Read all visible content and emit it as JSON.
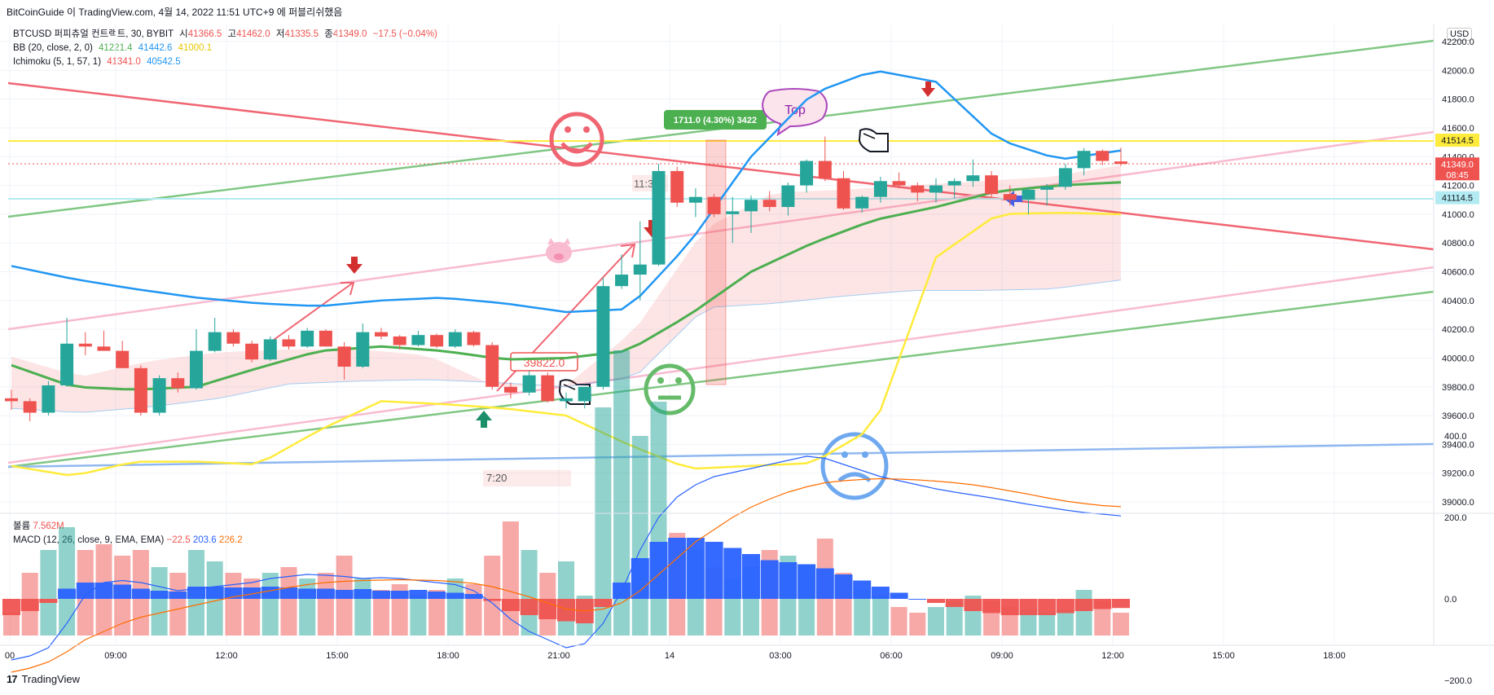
{
  "header": {
    "caption": "BitCoinGuide 이 TradingView.com, 4월 14, 2022 11:51 UTC+9 에 퍼블리쉬했음"
  },
  "legend": {
    "symbol": "BTCUSD 퍼피츄얼 컨트랙트, 30, BYBIT",
    "open_label": "시",
    "open": "41366.5",
    "high_label": "고",
    "high": "41462.0",
    "low_label": "저",
    "low": "41335.5",
    "close_label": "종",
    "close": "41349.0",
    "change": "−17.5 (−0.04%)",
    "bb_label": "BB (20, close, 2, 0)",
    "bb_basis": "41221.4",
    "bb_upper": "41442.6",
    "bb_lower": "41000.1",
    "ichi_label": "Ichimoku (5, 1, 57, 1)",
    "ichi_a": "41341.0",
    "ichi_b": "40542.5",
    "vol_label": "볼륨",
    "vol_value": "7.562M",
    "macd_label": "MACD (12, 26, close, 9, EMA, EMA)",
    "macd_hist": "−22.5",
    "macd_line": "203.6",
    "macd_signal": "226.2"
  },
  "currency": "USD",
  "brand": "TradingView",
  "colors": {
    "up": "#26a69a",
    "down": "#ef5350",
    "bb_basis": "#4caf50",
    "bb_upper": "#2196f3",
    "bb_lower": "#ffeb3b",
    "ichi_a": "#ef5350",
    "ichi_b": "#2196f3"
  },
  "chart_data": {
    "type": "candlestick",
    "price_axis": {
      "ticks": [
        "42200.0",
        "42000.0",
        "41800.0",
        "41600.0",
        "41400.0",
        "41200.0",
        "41000.0",
        "40800.0",
        "40600.0",
        "40400.0",
        "40200.0",
        "40000.0",
        "39800.0",
        "39600.0",
        "39400.0",
        "39200.0",
        "39000.0"
      ],
      "min": 38950,
      "max": 42270
    },
    "time_axis": {
      "ticks": [
        "00",
        "09:00",
        "12:00",
        "15:00",
        "18:00",
        "21:00",
        "14",
        "03:00",
        "06:00",
        "09:00",
        "12:00",
        "15:00",
        "18:00"
      ]
    },
    "price_labels": [
      {
        "text": "41514.5",
        "value": 41514.5,
        "bg": "#ffeb3b",
        "fg": "#131722"
      },
      {
        "text": "41349.0",
        "value": 41349.0,
        "bg": "#ef5350",
        "fg": "#ffffff",
        "sub": "08:45"
      },
      {
        "text": "41114.5",
        "value": 41114.5,
        "bg": "#b2ebf2",
        "fg": "#131722"
      }
    ],
    "candles": [
      {
        "o": 39720,
        "h": 39780,
        "l": 39640,
        "c": 39700
      },
      {
        "o": 39700,
        "h": 39720,
        "l": 39560,
        "c": 39620
      },
      {
        "o": 39620,
        "h": 39840,
        "l": 39600,
        "c": 39810
      },
      {
        "o": 39810,
        "h": 40280,
        "l": 39800,
        "c": 40100
      },
      {
        "o": 40100,
        "h": 40180,
        "l": 40020,
        "c": 40080
      },
      {
        "o": 40080,
        "h": 40190,
        "l": 40050,
        "c": 40050
      },
      {
        "o": 40050,
        "h": 40120,
        "l": 39930,
        "c": 39930
      },
      {
        "o": 39930,
        "h": 39950,
        "l": 39600,
        "c": 39620
      },
      {
        "o": 39620,
        "h": 39880,
        "l": 39600,
        "c": 39860
      },
      {
        "o": 39860,
        "h": 39900,
        "l": 39760,
        "c": 39790
      },
      {
        "o": 39790,
        "h": 40200,
        "l": 39780,
        "c": 40050
      },
      {
        "o": 40050,
        "h": 40280,
        "l": 40040,
        "c": 40180
      },
      {
        "o": 40180,
        "h": 40200,
        "l": 40080,
        "c": 40100
      },
      {
        "o": 40100,
        "h": 40120,
        "l": 39970,
        "c": 39990
      },
      {
        "o": 39990,
        "h": 40150,
        "l": 39980,
        "c": 40130
      },
      {
        "o": 40130,
        "h": 40160,
        "l": 40060,
        "c": 40080
      },
      {
        "o": 40080,
        "h": 40210,
        "l": 40070,
        "c": 40190
      },
      {
        "o": 40190,
        "h": 40200,
        "l": 40080,
        "c": 40080
      },
      {
        "o": 40080,
        "h": 40110,
        "l": 39850,
        "c": 39940
      },
      {
        "o": 39940,
        "h": 40240,
        "l": 39930,
        "c": 40180
      },
      {
        "o": 40180,
        "h": 40210,
        "l": 40130,
        "c": 40150
      },
      {
        "o": 40150,
        "h": 40160,
        "l": 40060,
        "c": 40090
      },
      {
        "o": 40090,
        "h": 40190,
        "l": 40080,
        "c": 40160
      },
      {
        "o": 40160,
        "h": 40170,
        "l": 40070,
        "c": 40080
      },
      {
        "o": 40080,
        "h": 40200,
        "l": 40070,
        "c": 40180
      },
      {
        "o": 40180,
        "h": 40190,
        "l": 40080,
        "c": 40090
      },
      {
        "o": 40090,
        "h": 40110,
        "l": 39780,
        "c": 39800
      },
      {
        "o": 39800,
        "h": 39830,
        "l": 39720,
        "c": 39760
      },
      {
        "o": 39760,
        "h": 39910,
        "l": 39740,
        "c": 39880
      },
      {
        "o": 39880,
        "h": 39900,
        "l": 39690,
        "c": 39700
      },
      {
        "o": 39700,
        "h": 39760,
        "l": 39650,
        "c": 39720
      },
      {
        "o": 39700,
        "h": 39800,
        "l": 39650,
        "c": 39800
      },
      {
        "o": 39800,
        "h": 40560,
        "l": 39780,
        "c": 40500
      },
      {
        "o": 40500,
        "h": 40720,
        "l": 40480,
        "c": 40580
      },
      {
        "o": 40580,
        "h": 40950,
        "l": 40400,
        "c": 40650
      },
      {
        "o": 40650,
        "h": 41350,
        "l": 40640,
        "c": 41300
      },
      {
        "o": 41300,
        "h": 41330,
        "l": 41050,
        "c": 41080
      },
      {
        "o": 41080,
        "h": 41180,
        "l": 40980,
        "c": 41120
      },
      {
        "o": 41120,
        "h": 41140,
        "l": 40980,
        "c": 41000
      },
      {
        "o": 41000,
        "h": 41120,
        "l": 40800,
        "c": 41020
      },
      {
        "o": 41020,
        "h": 41130,
        "l": 40870,
        "c": 41100
      },
      {
        "o": 41100,
        "h": 41160,
        "l": 41020,
        "c": 41050
      },
      {
        "o": 41050,
        "h": 41220,
        "l": 40990,
        "c": 41200
      },
      {
        "o": 41200,
        "h": 41380,
        "l": 41150,
        "c": 41370
      },
      {
        "o": 41370,
        "h": 41540,
        "l": 41230,
        "c": 41250
      },
      {
        "o": 41250,
        "h": 41300,
        "l": 41030,
        "c": 41040
      },
      {
        "o": 41040,
        "h": 41130,
        "l": 41010,
        "c": 41120
      },
      {
        "o": 41120,
        "h": 41260,
        "l": 41080,
        "c": 41230
      },
      {
        "o": 41230,
        "h": 41290,
        "l": 41180,
        "c": 41200
      },
      {
        "o": 41200,
        "h": 41220,
        "l": 41090,
        "c": 41150
      },
      {
        "o": 41150,
        "h": 41250,
        "l": 41080,
        "c": 41200
      },
      {
        "o": 41200,
        "h": 41250,
        "l": 41110,
        "c": 41230
      },
      {
        "o": 41230,
        "h": 41380,
        "l": 41190,
        "c": 41270
      },
      {
        "o": 41270,
        "h": 41300,
        "l": 41120,
        "c": 41140
      },
      {
        "o": 41140,
        "h": 41200,
        "l": 41060,
        "c": 41100
      },
      {
        "o": 41100,
        "h": 41190,
        "l": 41000,
        "c": 41170
      },
      {
        "o": 41170,
        "h": 41210,
        "l": 41060,
        "c": 41190
      },
      {
        "o": 41190,
        "h": 41350,
        "l": 41170,
        "c": 41320
      },
      {
        "o": 41320,
        "h": 41460,
        "l": 41270,
        "c": 41440
      },
      {
        "o": 41440,
        "h": 41450,
        "l": 41340,
        "c": 41370
      },
      {
        "o": 41366.5,
        "h": 41462,
        "l": 41335.5,
        "c": 41349
      }
    ],
    "volume_axis": {
      "ticks": [
        "400.0",
        "200.0",
        "0.0",
        "−200.0"
      ],
      "min": -230,
      "max": 410
    },
    "volume_bars": [
      8,
      22,
      30,
      38,
      30,
      32,
      28,
      30,
      24,
      22,
      30,
      26,
      22,
      20,
      22,
      24,
      20,
      22,
      28,
      20,
      16,
      18,
      14,
      16,
      20,
      18,
      28,
      40,
      30,
      22,
      26,
      14,
      80,
      100,
      70,
      82,
      36,
      30,
      24,
      20,
      24,
      30,
      28,
      25,
      34,
      22,
      16,
      14,
      10,
      8,
      10,
      12,
      14,
      12,
      10,
      9,
      8,
      9,
      16,
      12,
      8
    ],
    "macd_hist": [
      -40,
      -30,
      -10,
      25,
      40,
      40,
      35,
      25,
      20,
      18,
      30,
      30,
      28,
      28,
      30,
      28,
      25,
      25,
      22,
      24,
      20,
      20,
      22,
      18,
      15,
      12,
      -5,
      -30,
      -40,
      -50,
      -55,
      -60,
      -20,
      40,
      100,
      140,
      150,
      150,
      140,
      125,
      110,
      95,
      90,
      85,
      75,
      60,
      45,
      30,
      15,
      0,
      -10,
      -20,
      -30,
      -35,
      -40,
      -40,
      -40,
      -35,
      -30,
      -25,
      -22.5
    ],
    "macd_line": [
      -150,
      -140,
      -120,
      -60,
      10,
      40,
      45,
      40,
      30,
      20,
      25,
      30,
      35,
      40,
      50,
      55,
      60,
      58,
      55,
      50,
      52,
      50,
      45,
      40,
      35,
      20,
      -10,
      -50,
      -80,
      -100,
      -120,
      -110,
      -60,
      20,
      120,
      200,
      250,
      280,
      300,
      310,
      320,
      330,
      340,
      350,
      345,
      330,
      315,
      300,
      290,
      280,
      270,
      262,
      255,
      248,
      240,
      232,
      225,
      218,
      212,
      208,
      203.6
    ],
    "macd_signal": [
      -180,
      -170,
      -155,
      -130,
      -100,
      -80,
      -60,
      -45,
      -35,
      -25,
      -15,
      -5,
      5,
      12,
      20,
      28,
      35,
      40,
      43,
      45,
      46,
      47,
      46,
      45,
      42,
      38,
      30,
      18,
      5,
      -10,
      -25,
      -30,
      -25,
      -10,
      20,
      60,
      100,
      140,
      170,
      200,
      225,
      245,
      262,
      275,
      285,
      290,
      293,
      295,
      294,
      292,
      289,
      285,
      280,
      273,
      265,
      257,
      248,
      240,
      234,
      229,
      226.2
    ]
  }
}
